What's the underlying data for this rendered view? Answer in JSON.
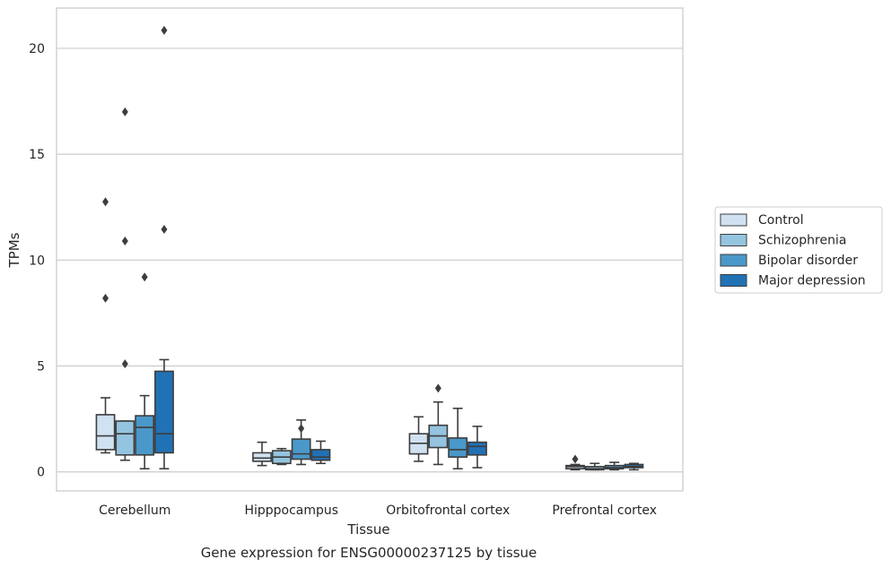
{
  "chart_data": {
    "type": "box",
    "title": "",
    "caption": "Gene expression for ENSG00000237125 by tissue",
    "xlabel": "Tissue",
    "ylabel": "TPMs",
    "ylim": [
      -0.9,
      21.9
    ],
    "yticks": [
      0,
      5,
      10,
      15,
      20
    ],
    "grid": "horizontal",
    "legend_position": "right",
    "categories": [
      "Cerebellum",
      "Hipppocampus",
      "Orbitofrontal cortex",
      "Prefrontal cortex"
    ],
    "series": [
      {
        "name": "Control",
        "color": "#d0e1f2",
        "boxes": [
          {
            "whislo": 0.9,
            "q1": 1.05,
            "med": 1.7,
            "q3": 2.7,
            "whishi": 3.5,
            "fliers": [
              8.2,
              12.75
            ]
          },
          {
            "whislo": 0.3,
            "q1": 0.5,
            "med": 0.65,
            "q3": 0.9,
            "whishi": 1.4,
            "fliers": []
          },
          {
            "whislo": 0.5,
            "q1": 0.85,
            "med": 1.35,
            "q3": 1.8,
            "whishi": 2.6,
            "fliers": []
          },
          {
            "whislo": 0.1,
            "q1": 0.15,
            "med": 0.25,
            "q3": 0.3,
            "whishi": 0.35,
            "fliers": [
              0.6
            ]
          }
        ]
      },
      {
        "name": "Schizophrenia",
        "color": "#94c4df",
        "boxes": [
          {
            "whislo": 0.55,
            "q1": 0.8,
            "med": 1.8,
            "q3": 2.4,
            "whishi": 2.4,
            "fliers": [
              5.1,
              10.9,
              17.0
            ]
          },
          {
            "whislo": 0.35,
            "q1": 0.4,
            "med": 0.7,
            "q3": 1.0,
            "whishi": 1.1,
            "fliers": []
          },
          {
            "whislo": 0.35,
            "q1": 1.15,
            "med": 1.7,
            "q3": 2.2,
            "whishi": 3.3,
            "fliers": [
              3.95
            ]
          },
          {
            "whislo": 0.1,
            "q1": 0.1,
            "med": 0.15,
            "q3": 0.25,
            "whishi": 0.4,
            "fliers": []
          }
        ]
      },
      {
        "name": "Bipolar disorder",
        "color": "#4a98c9",
        "boxes": [
          {
            "whislo": 0.15,
            "q1": 0.8,
            "med": 2.1,
            "q3": 2.65,
            "whishi": 3.6,
            "fliers": [
              9.2
            ]
          },
          {
            "whislo": 0.35,
            "q1": 0.6,
            "med": 0.85,
            "q3": 1.55,
            "whishi": 2.45,
            "fliers": [
              2.05
            ]
          },
          {
            "whislo": 0.15,
            "q1": 0.7,
            "med": 1.05,
            "q3": 1.6,
            "whishi": 3.0,
            "fliers": []
          },
          {
            "whislo": 0.1,
            "q1": 0.15,
            "med": 0.2,
            "q3": 0.3,
            "whishi": 0.45,
            "fliers": []
          }
        ]
      },
      {
        "name": "Major depression",
        "color": "#2171b5",
        "boxes": [
          {
            "whislo": 0.15,
            "q1": 0.9,
            "med": 1.8,
            "q3": 4.75,
            "whishi": 5.3,
            "fliers": [
              11.45,
              20.85
            ]
          },
          {
            "whislo": 0.4,
            "q1": 0.55,
            "med": 0.7,
            "q3": 1.05,
            "whishi": 1.45,
            "fliers": []
          },
          {
            "whislo": 0.2,
            "q1": 0.8,
            "med": 1.2,
            "q3": 1.4,
            "whishi": 2.15,
            "fliers": []
          },
          {
            "whislo": 0.1,
            "q1": 0.2,
            "med": 0.25,
            "q3": 0.35,
            "whishi": 0.4,
            "fliers": []
          }
        ]
      }
    ]
  }
}
